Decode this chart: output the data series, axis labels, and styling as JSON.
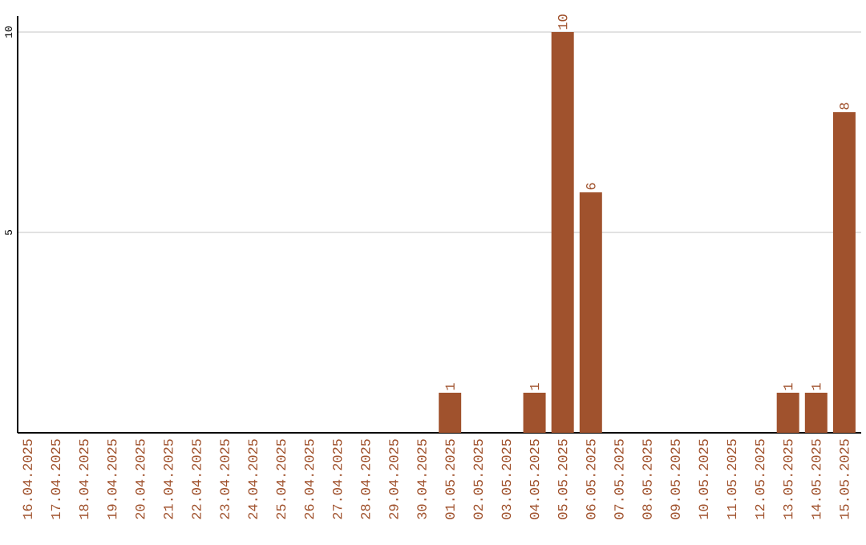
{
  "chart_data": {
    "type": "bar",
    "categories": [
      "16.04.2025",
      "17.04.2025",
      "18.04.2025",
      "19.04.2025",
      "20.04.2025",
      "21.04.2025",
      "22.04.2025",
      "23.04.2025",
      "24.04.2025",
      "25.04.2025",
      "26.04.2025",
      "27.04.2025",
      "28.04.2025",
      "29.04.2025",
      "30.04.2025",
      "01.05.2025",
      "02.05.2025",
      "03.05.2025",
      "04.05.2025",
      "05.05.2025",
      "06.05.2025",
      "07.05.2025",
      "08.05.2025",
      "09.05.2025",
      "10.05.2025",
      "11.05.2025",
      "12.05.2025",
      "13.05.2025",
      "14.05.2025",
      "15.05.2025"
    ],
    "values": [
      0,
      0,
      0,
      0,
      0,
      0,
      0,
      0,
      0,
      0,
      0,
      0,
      0,
      0,
      0,
      1,
      0,
      0,
      1,
      10,
      6,
      0,
      0,
      0,
      0,
      0,
      0,
      1,
      1,
      8
    ],
    "value_labels": [
      null,
      null,
      null,
      null,
      null,
      null,
      null,
      null,
      null,
      null,
      null,
      null,
      null,
      null,
      null,
      "1",
      null,
      null,
      "1",
      "10",
      "6",
      null,
      null,
      null,
      null,
      null,
      null,
      "1",
      "1",
      "8"
    ],
    "color": "#a0522d",
    "ylim": [
      0,
      10.4
    ],
    "yticks": [
      5,
      10
    ],
    "grid": "y"
  }
}
